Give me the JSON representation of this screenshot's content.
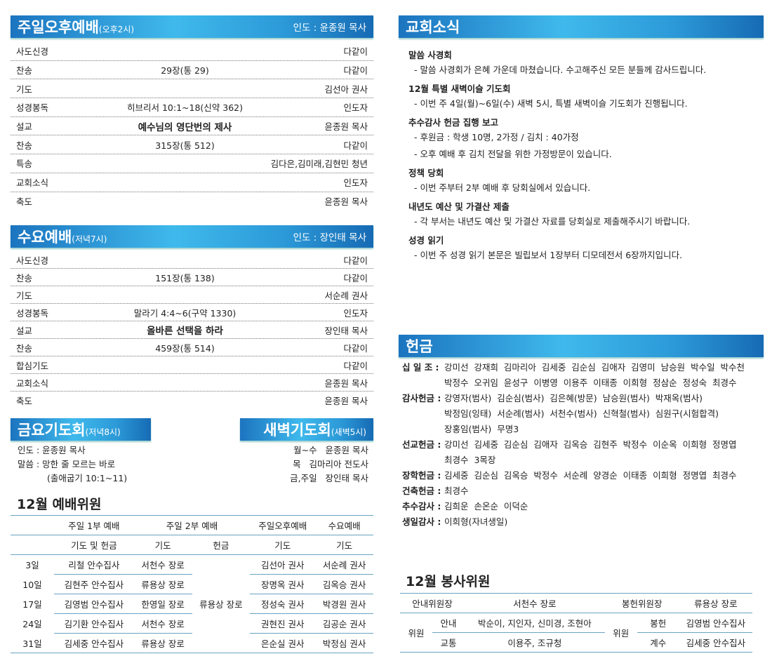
{
  "sunday_pm": {
    "title": "주일오후예배",
    "time": "(오후2시)",
    "leader": "인도 : 윤종원 목사",
    "rows": [
      [
        "사도신경",
        "",
        "다같이"
      ],
      [
        "찬송",
        "29장(통 29)",
        "다같이"
      ],
      [
        "기도",
        "",
        "김선아 권사"
      ],
      [
        "성경봉독",
        "히브리서 10:1~18(신약 362)",
        "인도자"
      ],
      [
        "설교",
        "예수님의 영단번의 제사",
        "윤종원 목사"
      ],
      [
        "찬송",
        "315장(통 512)",
        "다같이"
      ],
      [
        "특송",
        "",
        "김다은,김미래,김현민 청년"
      ],
      [
        "교회소식",
        "",
        "인도자"
      ],
      [
        "축도",
        "",
        "윤종원 목사"
      ]
    ]
  },
  "wednesday": {
    "title": "수요예배",
    "time": "(저녁7시)",
    "leader": "인도 : 장인태 목사",
    "rows": [
      [
        "사도신경",
        "",
        "다같이"
      ],
      [
        "찬송",
        "151장(통 138)",
        "다같이"
      ],
      [
        "기도",
        "",
        "서순례 권사"
      ],
      [
        "성경봉독",
        "말라기 4:4~6(구약 1330)",
        "인도자"
      ],
      [
        "설교",
        "올바른 선택을 하라",
        "장인태 목사"
      ],
      [
        "찬송",
        "459장(통 514)",
        "다같이"
      ],
      [
        "합심기도",
        "",
        "다같이"
      ],
      [
        "교회소식",
        "",
        "윤종원 목사"
      ],
      [
        "축도",
        "",
        "윤종원 목사"
      ]
    ]
  },
  "friday": {
    "title": "금요기도회",
    "time": "(저녁8시)",
    "lines": [
      "인도 : 윤종원 목사",
      "말씀 : 망한 줄 모르는 바로",
      "(출애굽기 10:1~11)"
    ]
  },
  "dawn": {
    "title": "새벽기도회",
    "time": "(새벽5시)",
    "lines": [
      "월~수   윤종원 목사",
      "목   김마리아 전도사",
      "금,주일   장인태 목사"
    ]
  },
  "worship_committee": {
    "title": "12월 예배위원",
    "groups": [
      "주일 1부 예배",
      "주일 2부 예배",
      "주일오후예배",
      "수요예배"
    ],
    "roles": [
      "기도 및 헌금",
      "기도",
      "헌금",
      "기도",
      "기도"
    ],
    "offering_2nd": "류용상 장로",
    "rows": [
      [
        "3일",
        "리철 안수집사",
        "서천수 장로",
        "김선아 권사",
        "서순례 권사"
      ],
      [
        "10일",
        "김현주 안수집사",
        "류용상 장로",
        "장명옥 권사",
        "김옥승 권사"
      ],
      [
        "17일",
        "김영범 안수집사",
        "한영일 장로",
        "정성숙 권사",
        "박경원 권사"
      ],
      [
        "24일",
        "김기환 안수집사",
        "서천수 장로",
        "권현진 권사",
        "김공순 권사"
      ],
      [
        "31일",
        "김세중 안수집사",
        "류용상 장로",
        "은순실 권사",
        "박정심 권사"
      ]
    ]
  },
  "news": {
    "title": "교회소식",
    "items": [
      {
        "h": "말씀 사경회",
        "lines": [
          "- 말씀 사경회가 은혜 가운데 마쳤습니다. 수고해주신 모든 분들께 감사드립니다."
        ]
      },
      {
        "h": "12월 특별 새벽이슬 기도회",
        "lines": [
          "- 이번 주 4일(월)~6일(수) 새벽 5시, 특별 새벽이슬 기도회가 진행됩니다."
        ]
      },
      {
        "h": "추수감사 헌금 집행 보고",
        "lines": [
          "- 후원금 : 학생 10명, 2가정 / 김치 : 40가정",
          "- 오후 예배 후 김치 전달을 위한 가정방문이 있습니다."
        ]
      },
      {
        "h": "정책 당회",
        "lines": [
          "- 이번 주부터 2부 예배 후 당회실에서 있습니다."
        ]
      },
      {
        "h": "내년도 예산 및 가결산 제출",
        "lines": [
          "- 각 부서는 내년도 예산 및 가결산 자료를 당회실로 제출해주시기 바랍니다."
        ]
      },
      {
        "h": "성경 읽기",
        "lines": [
          "- 이번 주 성경 읽기 본문은 빌립보서 1장부터 디모데전서 6장까지입니다."
        ]
      }
    ]
  },
  "offering": {
    "title": "헌금",
    "groups": [
      {
        "k": "십 일 조 :",
        "lines": [
          "강미선  강재희  김마리아  김세중  김순심  김애자  김영미  남승원  박수일  박수천",
          "박정수  오귀임  윤성구  이병영  이용주  이태종  이희형  정삼순  정성숙  최경수"
        ]
      },
      {
        "k": "감사헌금 :",
        "lines": [
          "강영자(범사)  김순심(범사)  김은혜(방문)  남승원(범사)  박재옥(범사)",
          "박정임(잉태)  서순례(범사)  서천수(범사)  신혁철(범사)  심원구(시험합격)",
          "장홍임(범사)  무명3"
        ]
      },
      {
        "k": "선교헌금 :",
        "lines": [
          "강미선  김세중  김순심  김애자  김옥승  김현주  박정수  이순옥  이희형  정명엽",
          "최경수  3목장"
        ]
      },
      {
        "k": "장학헌금 :",
        "lines": [
          "김세중  김순심  김옥승  박정수  서순례  양경순  이태종  이희형  정명엽  최경수"
        ]
      },
      {
        "k": "건축헌금 :",
        "lines": [
          "최경수"
        ]
      },
      {
        "k": "추수감사 :",
        "lines": [
          "김희운  손온순  이덕순"
        ]
      },
      {
        "k": "생일감사 :",
        "lines": [
          "이희형(자녀생일)"
        ]
      }
    ]
  },
  "service": {
    "title": "12월 봉사위원",
    "guide_head": "안내위원장",
    "guide_head_name": "서천수 장로",
    "offer_head": "봉헌위원장",
    "offer_head_name": "류용상 장로",
    "member": "위원",
    "guide": "안내",
    "guide_names": "박순이, 지인자, 신미경, 조현아",
    "traffic": "교통",
    "traffic_names": "이용주, 조규청",
    "offer": "봉헌",
    "offer_name": "김영범 안수집사",
    "count": "계수",
    "count_name": "김세중 안수집사"
  },
  "colors": {
    "header_blue": "#2c9ad8",
    "rule_blue": "#6aa3c2"
  }
}
